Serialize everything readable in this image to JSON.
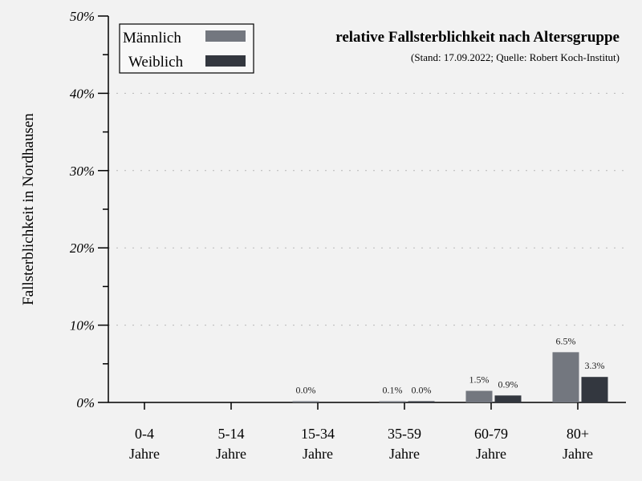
{
  "chart_data": {
    "type": "bar",
    "title": "relative Fallsterblichkeit nach Altersgruppe",
    "subtitle": "(Stand: 17.09.2022; Quelle: Robert Koch-Institut)",
    "xlabel": "",
    "ylabel": "Fallsterblichkeit in Nordhausen",
    "ylim": [
      0,
      50
    ],
    "yticks": [
      "0%",
      "10%",
      "20%",
      "30%",
      "40%",
      "50%"
    ],
    "grid": true,
    "legend_position": "top-left",
    "categories": [
      {
        "line1": "0-4",
        "line2": "Jahre"
      },
      {
        "line1": "5-14",
        "line2": "Jahre"
      },
      {
        "line1": "15-34",
        "line2": "Jahre"
      },
      {
        "line1": "35-59",
        "line2": "Jahre"
      },
      {
        "line1": "60-79",
        "line2": "Jahre"
      },
      {
        "line1": "80+",
        "line2": "Jahre"
      }
    ],
    "series": [
      {
        "name": "Männlich",
        "color": "#73777f",
        "values": [
          null,
          null,
          0.0,
          0.1,
          1.5,
          6.5
        ],
        "labels": [
          "",
          "",
          "0.0%",
          "0.1%",
          "1.5%",
          "6.5%"
        ]
      },
      {
        "name": "Weiblich",
        "color": "#33373f",
        "values": [
          null,
          null,
          null,
          0.0,
          0.9,
          3.3
        ],
        "labels": [
          "",
          "",
          "",
          "0.0%",
          "0.9%",
          "3.3%"
        ]
      }
    ]
  }
}
